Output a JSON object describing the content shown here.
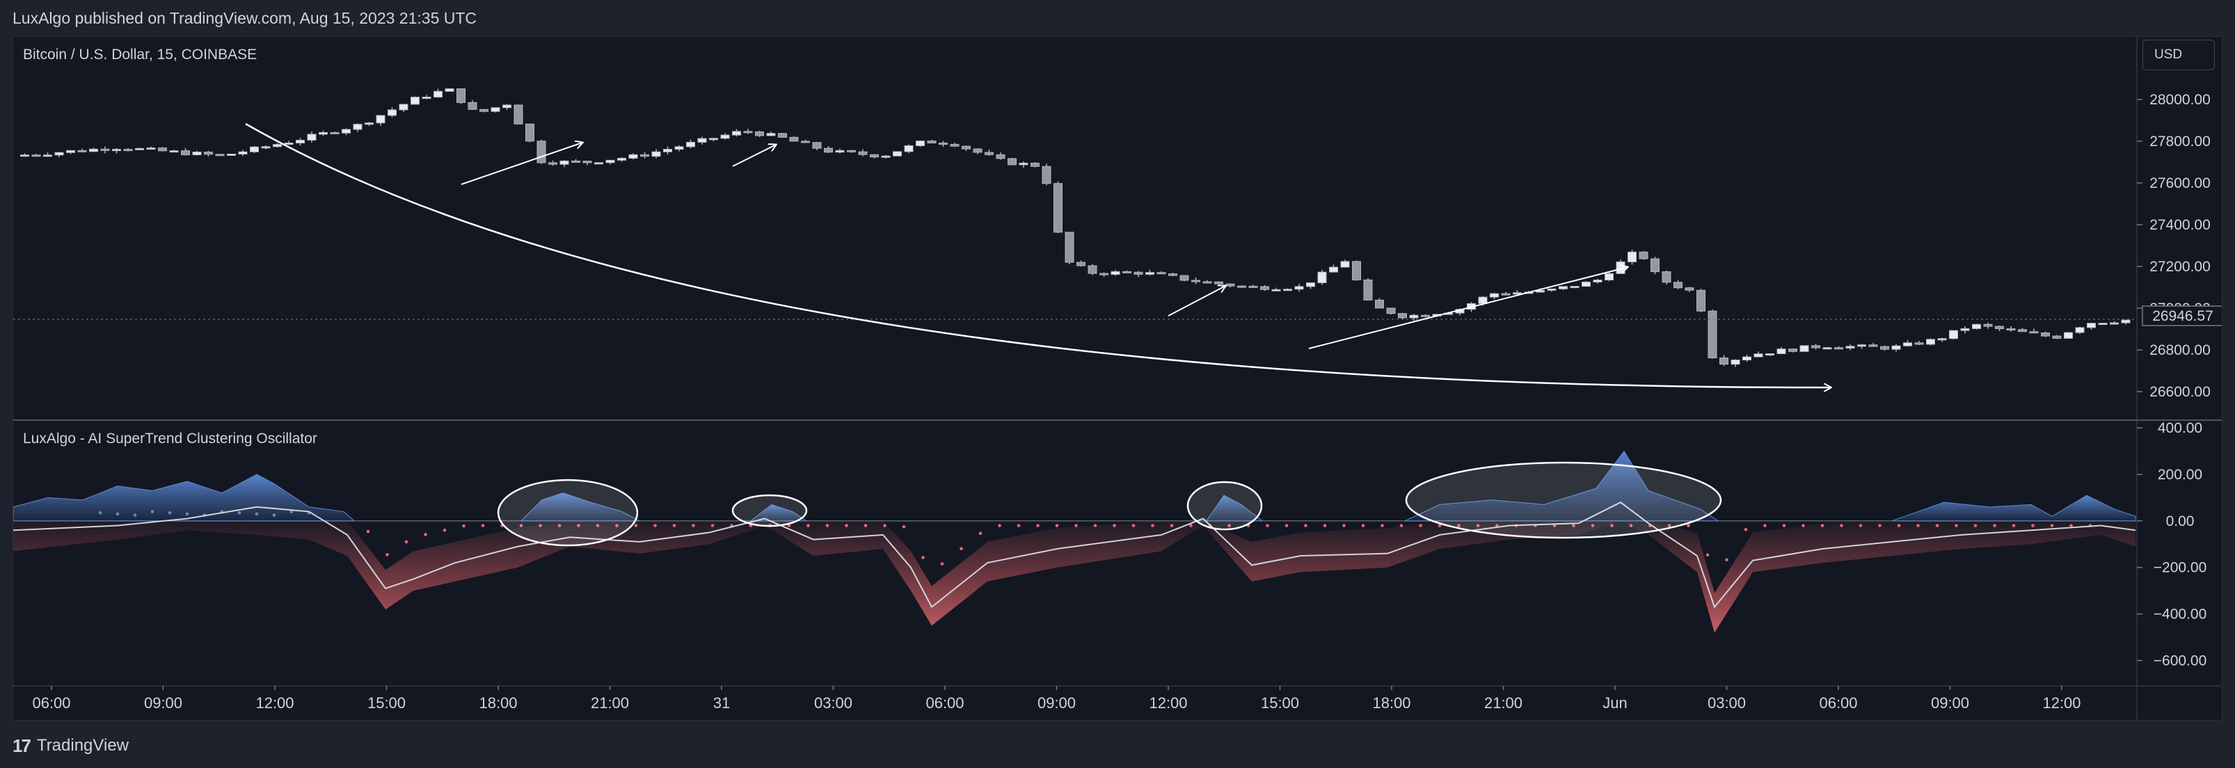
{
  "header": {
    "published": "LuxAlgo published on TradingView.com, Aug 15, 2023 21:35 UTC"
  },
  "footer": {
    "brand_mark": "17",
    "brand_name": "TradingView"
  },
  "price_pane": {
    "title": "Bitcoin / U.S. Dollar, 15, COINBASE",
    "currency": "USD",
    "last_price": "26946.57"
  },
  "oscillator_pane": {
    "title": "LuxAlgo - AI SuperTrend Clustering Oscillator"
  },
  "colors": {
    "background": "#131722",
    "candle": "#b2b5be",
    "bull_fill": "#4f7ac7",
    "bear_fill": "#c4565c",
    "signal_line": "#d1d4dc",
    "annotation": "#ffffff"
  },
  "chart_data": [
    {
      "type": "candlestick",
      "title": "Bitcoin / U.S. Dollar, 15, COINBASE",
      "x_ticks": [
        "06:00",
        "09:00",
        "12:00",
        "15:00",
        "18:00",
        "21:00",
        "31",
        "03:00",
        "06:00",
        "09:00",
        "12:00",
        "15:00",
        "18:00",
        "21:00",
        "Jun",
        "03:00",
        "06:00",
        "09:00",
        "12:00"
      ],
      "y_ticks": [
        "28000.00",
        "27800.00",
        "27600.00",
        "27400.00",
        "27200.00",
        "27000.00",
        "26800.00",
        "26600.00"
      ],
      "ylim": [
        26500,
        28100
      ],
      "last_value": 26946.57,
      "close_path": [
        [
          0,
          27730
        ],
        [
          3,
          27770
        ],
        [
          6,
          27730
        ],
        [
          8,
          27800
        ],
        [
          10,
          27880
        ],
        [
          11.5,
          28000
        ],
        [
          12.5,
          28050
        ],
        [
          13.3,
          27930
        ],
        [
          14.2,
          27980
        ],
        [
          15.2,
          27700
        ],
        [
          16.5,
          27700
        ],
        [
          18,
          27730
        ],
        [
          19.5,
          27790
        ],
        [
          21,
          27850
        ],
        [
          22,
          27820
        ],
        [
          23.5,
          27750
        ],
        [
          25,
          27730
        ],
        [
          26.2,
          27800
        ],
        [
          27,
          27790
        ],
        [
          28.5,
          27700
        ],
        [
          29.6,
          27680
        ],
        [
          30.2,
          27230
        ],
        [
          31,
          27170
        ],
        [
          32.5,
          27170
        ],
        [
          34,
          27130
        ],
        [
          35.5,
          27100
        ],
        [
          37,
          27100
        ],
        [
          38.3,
          27230
        ],
        [
          39,
          27010
        ],
        [
          40,
          26960
        ],
        [
          41.5,
          26990
        ],
        [
          42.5,
          27070
        ],
        [
          44,
          27080
        ],
        [
          45.5,
          27130
        ],
        [
          46.7,
          27280
        ],
        [
          47.3,
          27140
        ],
        [
          48.4,
          27070
        ],
        [
          48.9,
          26730
        ],
        [
          50,
          26780
        ],
        [
          52,
          26820
        ],
        [
          54,
          26810
        ],
        [
          55.3,
          26850
        ],
        [
          56.3,
          26920
        ],
        [
          57.5,
          26890
        ],
        [
          58.7,
          26860
        ],
        [
          59.6,
          26930
        ],
        [
          60.5,
          26940
        ],
        [
          61,
          26946
        ]
      ]
    },
    {
      "type": "area",
      "title": "LuxAlgo - AI SuperTrend Clustering Oscillator",
      "y_ticks": [
        "400.00",
        "200.00",
        "0.00",
        "−200.00",
        "−400.00",
        "−600.00"
      ],
      "ylim": [
        -700,
        400
      ],
      "bull_zones": [
        [
          [
            0,
            60
          ],
          [
            1,
            100
          ],
          [
            2,
            90
          ],
          [
            3,
            150
          ],
          [
            4,
            130
          ],
          [
            5,
            170
          ],
          [
            6,
            120
          ],
          [
            7,
            200
          ],
          [
            7.5,
            160
          ],
          [
            8.5,
            60
          ],
          [
            9.5,
            40
          ],
          [
            9.8,
            0
          ]
        ],
        [
          [
            14.6,
            0
          ],
          [
            15.2,
            90
          ],
          [
            15.8,
            120
          ],
          [
            16.6,
            80
          ],
          [
            17.5,
            40
          ],
          [
            18,
            0
          ]
        ],
        [
          [
            21.2,
            0
          ],
          [
            21.8,
            70
          ],
          [
            22.4,
            40
          ],
          [
            22.8,
            0
          ]
        ],
        [
          [
            34.3,
            0
          ],
          [
            34.8,
            110
          ],
          [
            35.3,
            70
          ],
          [
            35.9,
            0
          ]
        ],
        [
          [
            40,
            0
          ],
          [
            41,
            70
          ],
          [
            42.5,
            90
          ],
          [
            44,
            70
          ],
          [
            45.5,
            140
          ],
          [
            46.3,
            300
          ],
          [
            47,
            130
          ],
          [
            48.5,
            50
          ],
          [
            49,
            0
          ]
        ],
        [
          [
            54,
            0
          ],
          [
            55.5,
            80
          ],
          [
            56.8,
            60
          ],
          [
            58,
            70
          ],
          [
            58.6,
            20
          ],
          [
            59.6,
            110
          ],
          [
            60.4,
            50
          ],
          [
            61,
            20
          ]
        ]
      ],
      "bear_band": [
        [
          0,
          -130
        ],
        [
          3,
          -80
        ],
        [
          5,
          -40
        ],
        [
          7,
          -60
        ],
        [
          8.5,
          -80
        ],
        [
          9.6,
          -150
        ],
        [
          10.7,
          -380
        ],
        [
          11.5,
          -300
        ],
        [
          12.7,
          -260
        ],
        [
          14.5,
          -200
        ],
        [
          16,
          -110
        ],
        [
          18,
          -140
        ],
        [
          20,
          -100
        ],
        [
          21.6,
          -20
        ],
        [
          23,
          -150
        ],
        [
          25,
          -120
        ],
        [
          25.8,
          -300
        ],
        [
          26.4,
          -450
        ],
        [
          28,
          -260
        ],
        [
          30,
          -200
        ],
        [
          33,
          -130
        ],
        [
          34.2,
          -20
        ],
        [
          35.6,
          -260
        ],
        [
          37,
          -220
        ],
        [
          39.5,
          -200
        ],
        [
          41,
          -120
        ],
        [
          43,
          -80
        ],
        [
          45,
          -60
        ],
        [
          46.2,
          0
        ],
        [
          47,
          -60
        ],
        [
          48.4,
          -220
        ],
        [
          48.9,
          -480
        ],
        [
          50,
          -220
        ],
        [
          52,
          -180
        ],
        [
          54,
          -150
        ],
        [
          56,
          -120
        ],
        [
          58,
          -100
        ],
        [
          60,
          -60
        ],
        [
          61,
          -110
        ]
      ],
      "signal_line": [
        [
          0,
          -40
        ],
        [
          3,
          -20
        ],
        [
          5,
          10
        ],
        [
          7,
          60
        ],
        [
          8.5,
          40
        ],
        [
          9.6,
          -60
        ],
        [
          10.7,
          -290
        ],
        [
          11.5,
          -250
        ],
        [
          12.7,
          -180
        ],
        [
          14.5,
          -110
        ],
        [
          16,
          -70
        ],
        [
          18,
          -90
        ],
        [
          20,
          -50
        ],
        [
          21.6,
          10
        ],
        [
          23,
          -80
        ],
        [
          25,
          -60
        ],
        [
          25.8,
          -200
        ],
        [
          26.4,
          -370
        ],
        [
          28,
          -180
        ],
        [
          30,
          -120
        ],
        [
          33,
          -60
        ],
        [
          34.2,
          10
        ],
        [
          35.6,
          -190
        ],
        [
          37,
          -150
        ],
        [
          39.5,
          -140
        ],
        [
          41,
          -60
        ],
        [
          43,
          -20
        ],
        [
          45,
          -10
        ],
        [
          46.2,
          80
        ],
        [
          47,
          -10
        ],
        [
          48.4,
          -150
        ],
        [
          48.9,
          -370
        ],
        [
          50,
          -170
        ],
        [
          52,
          -120
        ],
        [
          54,
          -90
        ],
        [
          56,
          -60
        ],
        [
          58,
          -40
        ],
        [
          60,
          -20
        ],
        [
          61,
          -40
        ]
      ]
    }
  ]
}
